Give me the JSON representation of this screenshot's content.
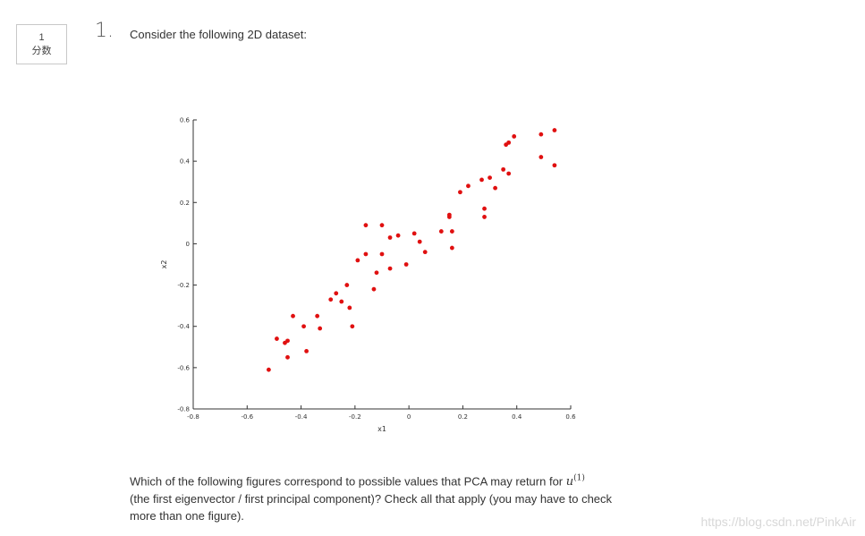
{
  "score": {
    "value": "1",
    "label": "分数"
  },
  "question": {
    "number": "1.",
    "intro": "Consider the following 2D dataset:",
    "body_before": "Which of the following figures correspond to possible values that PCA may return for",
    "math_symbol": "u",
    "math_superscript": "(1)",
    "body_after": "(the first eigenvector / first principal component)? Check all that apply (you may have to check more than one figure)."
  },
  "watermark": "https://blog.csdn.net/PinkAir",
  "chart_data": {
    "type": "scatter",
    "xlabel": "x1",
    "ylabel": "x2",
    "xlim": [
      -0.8,
      0.6
    ],
    "ylim": [
      -0.8,
      0.6
    ],
    "xticks": [
      "-0.8",
      "-0.6",
      "-0.4",
      "-0.2",
      "0",
      "0.2",
      "0.4",
      "0.6"
    ],
    "yticks": [
      "-0.8",
      "-0.6",
      "-0.4",
      "-0.2",
      "0",
      "0.2",
      "0.4",
      "0.6"
    ],
    "grid": false,
    "color": "#e01010",
    "points": [
      [
        -0.52,
        -0.61
      ],
      [
        -0.49,
        -0.46
      ],
      [
        -0.46,
        -0.48
      ],
      [
        -0.45,
        -0.47
      ],
      [
        -0.45,
        -0.55
      ],
      [
        -0.43,
        -0.35
      ],
      [
        -0.39,
        -0.4
      ],
      [
        -0.38,
        -0.52
      ],
      [
        -0.34,
        -0.35
      ],
      [
        -0.33,
        -0.41
      ],
      [
        -0.29,
        -0.27
      ],
      [
        -0.27,
        -0.24
      ],
      [
        -0.25,
        -0.28
      ],
      [
        -0.23,
        -0.2
      ],
      [
        -0.22,
        -0.31
      ],
      [
        -0.21,
        -0.4
      ],
      [
        -0.19,
        -0.08
      ],
      [
        -0.16,
        -0.05
      ],
      [
        -0.16,
        0.09
      ],
      [
        -0.13,
        -0.22
      ],
      [
        -0.12,
        -0.14
      ],
      [
        -0.1,
        0.09
      ],
      [
        -0.1,
        -0.05
      ],
      [
        -0.07,
        0.03
      ],
      [
        -0.07,
        -0.12
      ],
      [
        -0.04,
        0.04
      ],
      [
        -0.01,
        -0.1
      ],
      [
        0.02,
        0.05
      ],
      [
        0.04,
        0.01
      ],
      [
        0.06,
        -0.04
      ],
      [
        0.12,
        0.06
      ],
      [
        0.15,
        0.13
      ],
      [
        0.15,
        0.14
      ],
      [
        0.16,
        0.06
      ],
      [
        0.16,
        -0.02
      ],
      [
        0.19,
        0.25
      ],
      [
        0.22,
        0.28
      ],
      [
        0.27,
        0.31
      ],
      [
        0.28,
        0.17
      ],
      [
        0.28,
        0.13
      ],
      [
        0.3,
        0.32
      ],
      [
        0.32,
        0.27
      ],
      [
        0.35,
        0.36
      ],
      [
        0.36,
        0.48
      ],
      [
        0.37,
        0.49
      ],
      [
        0.37,
        0.34
      ],
      [
        0.39,
        0.52
      ],
      [
        0.49,
        0.53
      ],
      [
        0.49,
        0.42
      ],
      [
        0.54,
        0.55
      ],
      [
        0.54,
        0.38
      ]
    ]
  }
}
